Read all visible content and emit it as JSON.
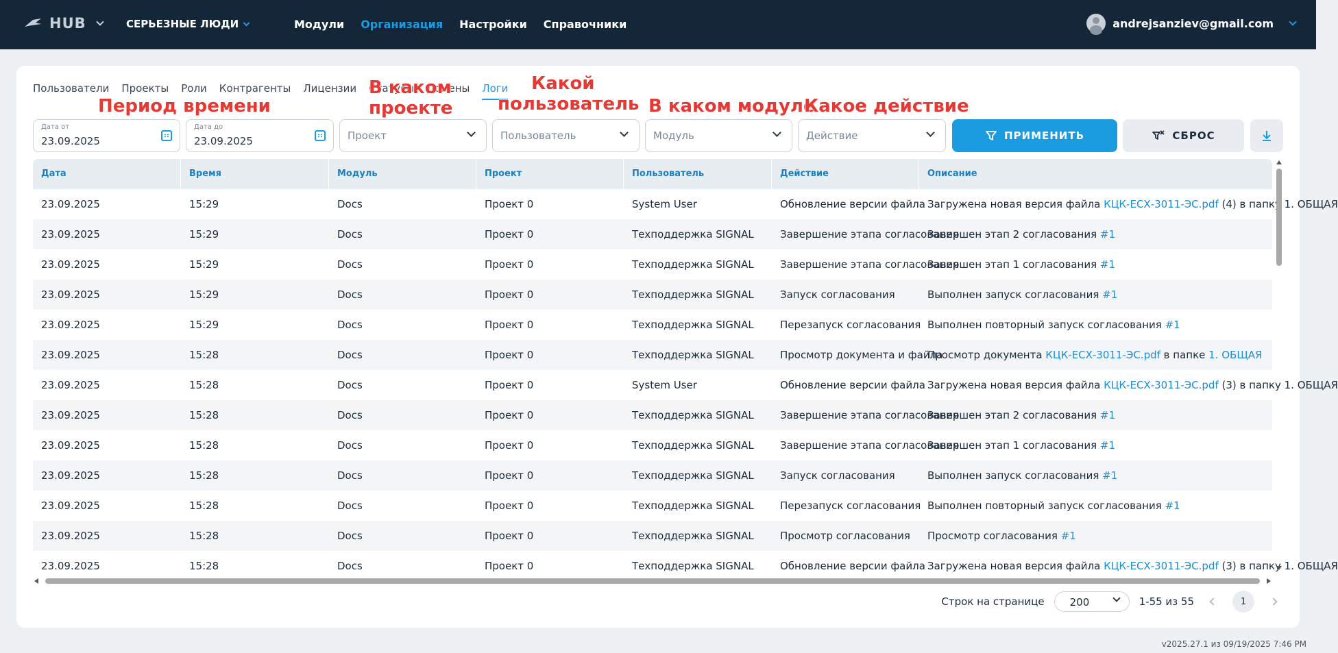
{
  "header": {
    "logo_text": "HUB",
    "organization": "СЕРЬЕЗНЫЕ ЛЮДИ",
    "nav": [
      {
        "label": "Модули",
        "active": false
      },
      {
        "label": "Организация",
        "active": true
      },
      {
        "label": "Настройки",
        "active": false
      },
      {
        "label": "Справочники",
        "active": false
      }
    ],
    "user_email": "andrejsanziev@gmail.com"
  },
  "tabs": [
    "Пользователи",
    "Проекты",
    "Роли",
    "Контрагенты",
    "Лицензии",
    "Статусы",
    "Домены",
    "Логи"
  ],
  "active_tab": "Логи",
  "filters": {
    "date_from_label": "Дата от",
    "date_from_value": "23.09.2025",
    "date_to_label": "Дата до",
    "date_to_value": "23.09.2025",
    "project_placeholder": "Проект",
    "user_placeholder": "Пользователь",
    "module_placeholder": "Модуль",
    "action_placeholder": "Действие",
    "apply_label": "ПРИМЕНИТЬ",
    "reset_label": "СБРОС"
  },
  "annotations": {
    "period": "Период времени",
    "project_line1": "В каком",
    "project_line2": "проекте",
    "user_line1": "Какой",
    "user_line2": "пользователь",
    "module": "В каком модуле",
    "action": "Какое действие"
  },
  "table": {
    "columns": [
      "Дата",
      "Время",
      "Модуль",
      "Проект",
      "Пользователь",
      "Действие",
      "Описание"
    ],
    "rows": [
      {
        "date": "23.09.2025",
        "time": "15:29",
        "module": "Docs",
        "project": "Проект 0",
        "user": "System User",
        "action": "Обновление версии файла",
        "desc": [
          {
            "t": "Загружена новая версия файла "
          },
          {
            "t": "КЦК-ЕСХ-3011-ЭС.pdf",
            "link": true
          },
          {
            "t": " (4) в папку 1. ОБЩАЯ"
          }
        ]
      },
      {
        "date": "23.09.2025",
        "time": "15:29",
        "module": "Docs",
        "project": "Проект 0",
        "user": "Техподдержка SIGNAL",
        "action": "Завершение этапа согласования",
        "desc": [
          {
            "t": "Завершен этап 2 согласования "
          },
          {
            "t": "#1",
            "link": true
          }
        ]
      },
      {
        "date": "23.09.2025",
        "time": "15:29",
        "module": "Docs",
        "project": "Проект 0",
        "user": "Техподдержка SIGNAL",
        "action": "Завершение этапа согласования",
        "desc": [
          {
            "t": "Завершен этап 1 согласования "
          },
          {
            "t": "#1",
            "link": true
          }
        ]
      },
      {
        "date": "23.09.2025",
        "time": "15:29",
        "module": "Docs",
        "project": "Проект 0",
        "user": "Техподдержка SIGNAL",
        "action": "Запуск согласования",
        "desc": [
          {
            "t": "Выполнен запуск согласования "
          },
          {
            "t": "#1",
            "link": true
          }
        ]
      },
      {
        "date": "23.09.2025",
        "time": "15:29",
        "module": "Docs",
        "project": "Проект 0",
        "user": "Техподдержка SIGNAL",
        "action": "Перезапуск согласования",
        "desc": [
          {
            "t": "Выполнен повторный запуск согласования "
          },
          {
            "t": "#1",
            "link": true
          }
        ]
      },
      {
        "date": "23.09.2025",
        "time": "15:28",
        "module": "Docs",
        "project": "Проект 0",
        "user": "Техподдержка SIGNAL",
        "action": "Просмотр документа и файла",
        "desc": [
          {
            "t": "Просмотр документа "
          },
          {
            "t": "КЦК-ЕСХ-3011-ЭС.pdf",
            "link": true
          },
          {
            "t": " в папке "
          },
          {
            "t": "1. ОБЩАЯ",
            "link": true
          }
        ]
      },
      {
        "date": "23.09.2025",
        "time": "15:28",
        "module": "Docs",
        "project": "Проект 0",
        "user": "System User",
        "action": "Обновление версии файла",
        "desc": [
          {
            "t": "Загружена новая версия файла "
          },
          {
            "t": "КЦК-ЕСХ-3011-ЭС.pdf",
            "link": true
          },
          {
            "t": " (3) в папку 1. ОБЩАЯ"
          }
        ]
      },
      {
        "date": "23.09.2025",
        "time": "15:28",
        "module": "Docs",
        "project": "Проект 0",
        "user": "Техподдержка SIGNAL",
        "action": "Завершение этапа согласования",
        "desc": [
          {
            "t": "Завершен этап 2 согласования "
          },
          {
            "t": "#1",
            "link": true
          }
        ]
      },
      {
        "date": "23.09.2025",
        "time": "15:28",
        "module": "Docs",
        "project": "Проект 0",
        "user": "Техподдержка SIGNAL",
        "action": "Завершение этапа согласования",
        "desc": [
          {
            "t": "Завершен этап 1 согласования "
          },
          {
            "t": "#1",
            "link": true
          }
        ]
      },
      {
        "date": "23.09.2025",
        "time": "15:28",
        "module": "Docs",
        "project": "Проект 0",
        "user": "Техподдержка SIGNAL",
        "action": "Запуск согласования",
        "desc": [
          {
            "t": "Выполнен запуск согласования "
          },
          {
            "t": "#1",
            "link": true
          }
        ]
      },
      {
        "date": "23.09.2025",
        "time": "15:28",
        "module": "Docs",
        "project": "Проект 0",
        "user": "Техподдержка SIGNAL",
        "action": "Перезапуск согласования",
        "desc": [
          {
            "t": "Выполнен повторный запуск согласования "
          },
          {
            "t": "#1",
            "link": true
          }
        ]
      },
      {
        "date": "23.09.2025",
        "time": "15:28",
        "module": "Docs",
        "project": "Проект 0",
        "user": "Техподдержка SIGNAL",
        "action": "Просмотр согласования",
        "desc": [
          {
            "t": "Просмотр согласования "
          },
          {
            "t": "#1",
            "link": true
          }
        ]
      },
      {
        "date": "23.09.2025",
        "time": "15:28",
        "module": "Docs",
        "project": "Проект 0",
        "user": "Техподдержка SIGNAL",
        "action": "Обновление версии файла",
        "desc": [
          {
            "t": "Загружена новая версия файла "
          },
          {
            "t": "КЦК-ЕСХ-3011-ЭС.pdf",
            "link": true
          },
          {
            "t": " (3) в папку 1. ОБЩАЯ"
          }
        ]
      }
    ]
  },
  "pagination": {
    "rows_label": "Строк на странице",
    "rows_value": "200",
    "range": "1-55 из 55",
    "current_page": "1"
  },
  "version": "v2025.27.1 из 09/19/2025 7:46 PM",
  "colors": {
    "accent": "#1b9be0",
    "topbar": "#142738",
    "annotation": "#e53935"
  }
}
